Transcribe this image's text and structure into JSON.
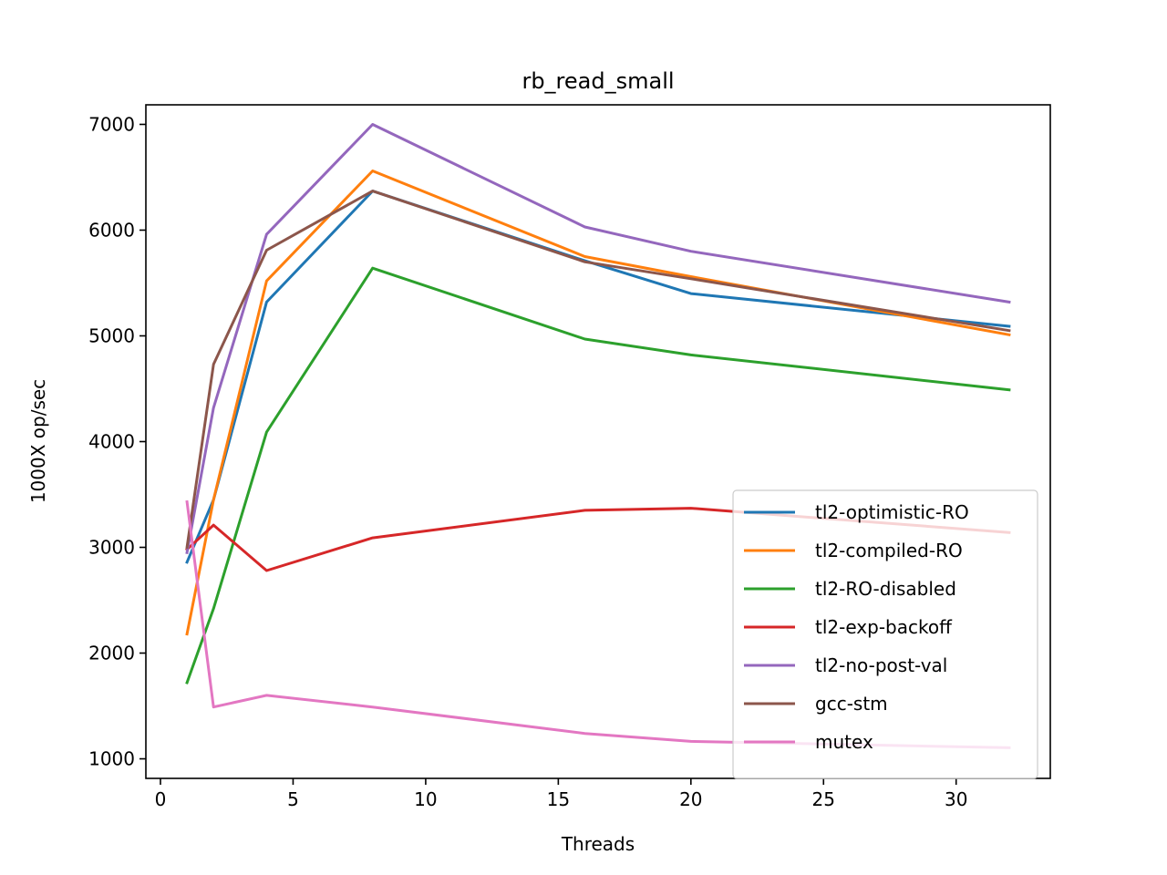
{
  "chart_data": {
    "type": "line",
    "title": "rb_read_small",
    "xlabel": "Threads",
    "ylabel": "1000X op/sec",
    "xlim": [
      -0.55,
      33.55
    ],
    "ylim": [
      815,
      7185
    ],
    "xticks": [
      0,
      5,
      10,
      15,
      20,
      25,
      30
    ],
    "yticks": [
      1000,
      2000,
      3000,
      4000,
      5000,
      6000,
      7000
    ],
    "legend_position": "lower right",
    "x": [
      1,
      2,
      4,
      8,
      16,
      20,
      32
    ],
    "series": [
      {
        "name": "tl2-optimistic-RO",
        "color": "#1f77b4",
        "values": [
          2860,
          3450,
          5320,
          6370,
          5710,
          5400,
          5090
        ]
      },
      {
        "name": "tl2-compiled-RO",
        "color": "#ff7f0e",
        "values": [
          2180,
          3450,
          5520,
          6560,
          5750,
          5560,
          5010
        ]
      },
      {
        "name": "tl2-RO-disabled",
        "color": "#2ca02c",
        "values": [
          1720,
          2420,
          4090,
          5640,
          4970,
          4820,
          4490
        ]
      },
      {
        "name": "tl2-exp-backoff",
        "color": "#d62728",
        "values": [
          2980,
          3210,
          2780,
          3090,
          3350,
          3370,
          3140
        ]
      },
      {
        "name": "tl2-no-post-val",
        "color": "#9467bd",
        "values": [
          2950,
          4320,
          5960,
          7000,
          6030,
          5800,
          5320
        ]
      },
      {
        "name": "gcc-stm",
        "color": "#8c564b",
        "values": [
          3000,
          4730,
          5810,
          6370,
          5700,
          5540,
          5050
        ]
      },
      {
        "name": "mutex",
        "color": "#e377c2",
        "values": [
          3430,
          1490,
          1600,
          1490,
          1240,
          1165,
          1105
        ]
      }
    ]
  }
}
